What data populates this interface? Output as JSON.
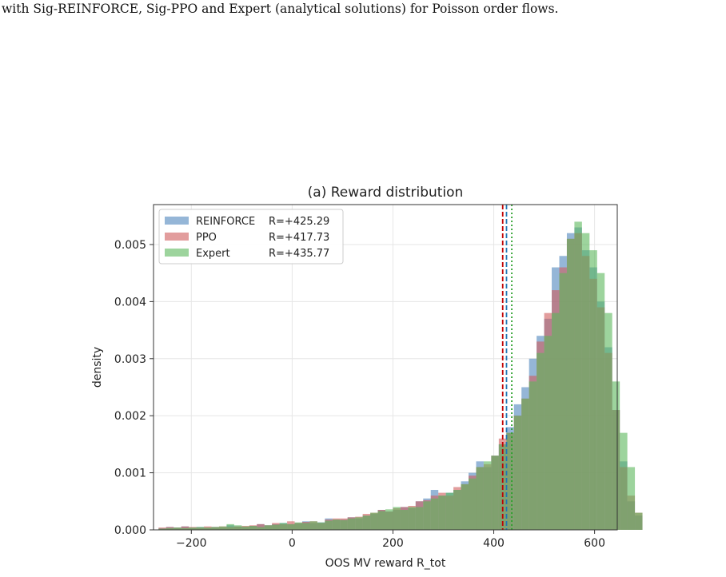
{
  "caption": "with Sig-REINFORCE, Sig-PPO and Expert (analytical solutions) for Poisson order flows.",
  "chart_data": {
    "type": "histogram",
    "title": "(a) Reward distribution",
    "xlabel": "OOS MV reward R_tot",
    "ylabel": "density",
    "xlim": [
      -275,
      645
    ],
    "ylim": [
      0,
      0.0057
    ],
    "xticks": [
      -200,
      0,
      200,
      400,
      600
    ],
    "xtick_labels": [
      "−200",
      "0",
      "200",
      "400",
      "600"
    ],
    "yticks": [
      0.0,
      0.001,
      0.002,
      0.003,
      0.004,
      0.005
    ],
    "ytick_labels": [
      "0.000",
      "0.001",
      "0.002",
      "0.003",
      "0.004",
      "0.005"
    ],
    "grid": true,
    "legend_location": "upper left",
    "bin_start": -265,
    "bin_width": 15,
    "series": [
      {
        "name": "REINFORCE",
        "mean_label": "R=+425.29",
        "mean": 425.29,
        "color": "#4f86bd",
        "mean_line_style": "dashed",
        "mean_line_color": "#1f77b4",
        "values": [
          3e-05,
          5e-05,
          4e-05,
          6e-05,
          4e-05,
          5e-05,
          4e-05,
          5e-05,
          4e-05,
          8e-05,
          6e-05,
          5e-05,
          7e-05,
          0.0001,
          8e-05,
          0.0001,
          0.00012,
          0.0001,
          0.00012,
          0.00015,
          0.00012,
          0.00013,
          0.0002,
          0.00018,
          0.00018,
          0.00022,
          0.0002,
          0.00025,
          0.00028,
          0.00035,
          0.00032,
          0.00035,
          0.0004,
          0.00038,
          0.0005,
          0.00055,
          0.0007,
          0.0006,
          0.00065,
          0.0007,
          0.00085,
          0.001,
          0.0012,
          0.0011,
          0.0013,
          0.0015,
          0.0018,
          0.0022,
          0.0025,
          0.003,
          0.0034,
          0.0037,
          0.0046,
          0.0048,
          0.0052,
          0.0053,
          0.0049,
          0.0046,
          0.004,
          0.0032,
          0.0021,
          0.0012,
          0.0005,
          0.00025
        ]
      },
      {
        "name": "PPO",
        "mean_label": "R=+417.73",
        "mean": 417.73,
        "color": "#cf5b5b",
        "mean_line_style": "dashed",
        "mean_line_color": "#c00000",
        "values": [
          4e-05,
          5e-05,
          4e-05,
          6e-05,
          5e-05,
          4e-05,
          6e-05,
          5e-05,
          6e-05,
          5e-05,
          6e-05,
          7e-05,
          8e-05,
          0.0001,
          8e-05,
          0.00012,
          0.0001,
          0.00015,
          0.00012,
          0.00014,
          0.00015,
          0.00012,
          0.00018,
          0.0002,
          0.0002,
          0.00022,
          0.00023,
          0.00028,
          0.0003,
          0.00035,
          0.00032,
          0.00038,
          0.0004,
          0.00042,
          0.0005,
          0.00052,
          0.0006,
          0.00065,
          0.0006,
          0.00075,
          0.0008,
          0.00095,
          0.0011,
          0.00115,
          0.0013,
          0.0016,
          0.0017,
          0.002,
          0.0023,
          0.0027,
          0.0033,
          0.0038,
          0.0042,
          0.0046,
          0.0051,
          0.0052,
          0.0048,
          0.0044,
          0.0039,
          0.0031,
          0.0021,
          0.0011,
          0.0006,
          0.0003
        ]
      },
      {
        "name": "Expert",
        "mean_label": "R=+435.77",
        "mean": 435.77,
        "color": "#5cb85c",
        "mean_line_style": "dotted",
        "mean_line_color": "#2ca02c",
        "values": [
          2e-05,
          3e-05,
          4e-05,
          3e-05,
          4e-05,
          5e-05,
          4e-05,
          5e-05,
          6e-05,
          0.0001,
          8e-05,
          6e-05,
          7e-05,
          5e-05,
          8e-05,
          9e-05,
          0.00012,
          0.0001,
          0.00013,
          0.00012,
          0.00015,
          0.00013,
          0.00016,
          0.00018,
          0.00017,
          0.0002,
          0.00022,
          0.00025,
          0.0003,
          0.00033,
          0.00036,
          0.0004,
          0.00035,
          0.0004,
          0.0004,
          0.0005,
          0.00055,
          0.0006,
          0.00065,
          0.0007,
          0.0008,
          0.0009,
          0.0011,
          0.0012,
          0.0013,
          0.0015,
          0.0017,
          0.002,
          0.0023,
          0.0026,
          0.0031,
          0.0034,
          0.0038,
          0.0045,
          0.0051,
          0.0054,
          0.0052,
          0.0049,
          0.0045,
          0.0038,
          0.0026,
          0.0017,
          0.0011,
          0.0003
        ]
      }
    ]
  }
}
